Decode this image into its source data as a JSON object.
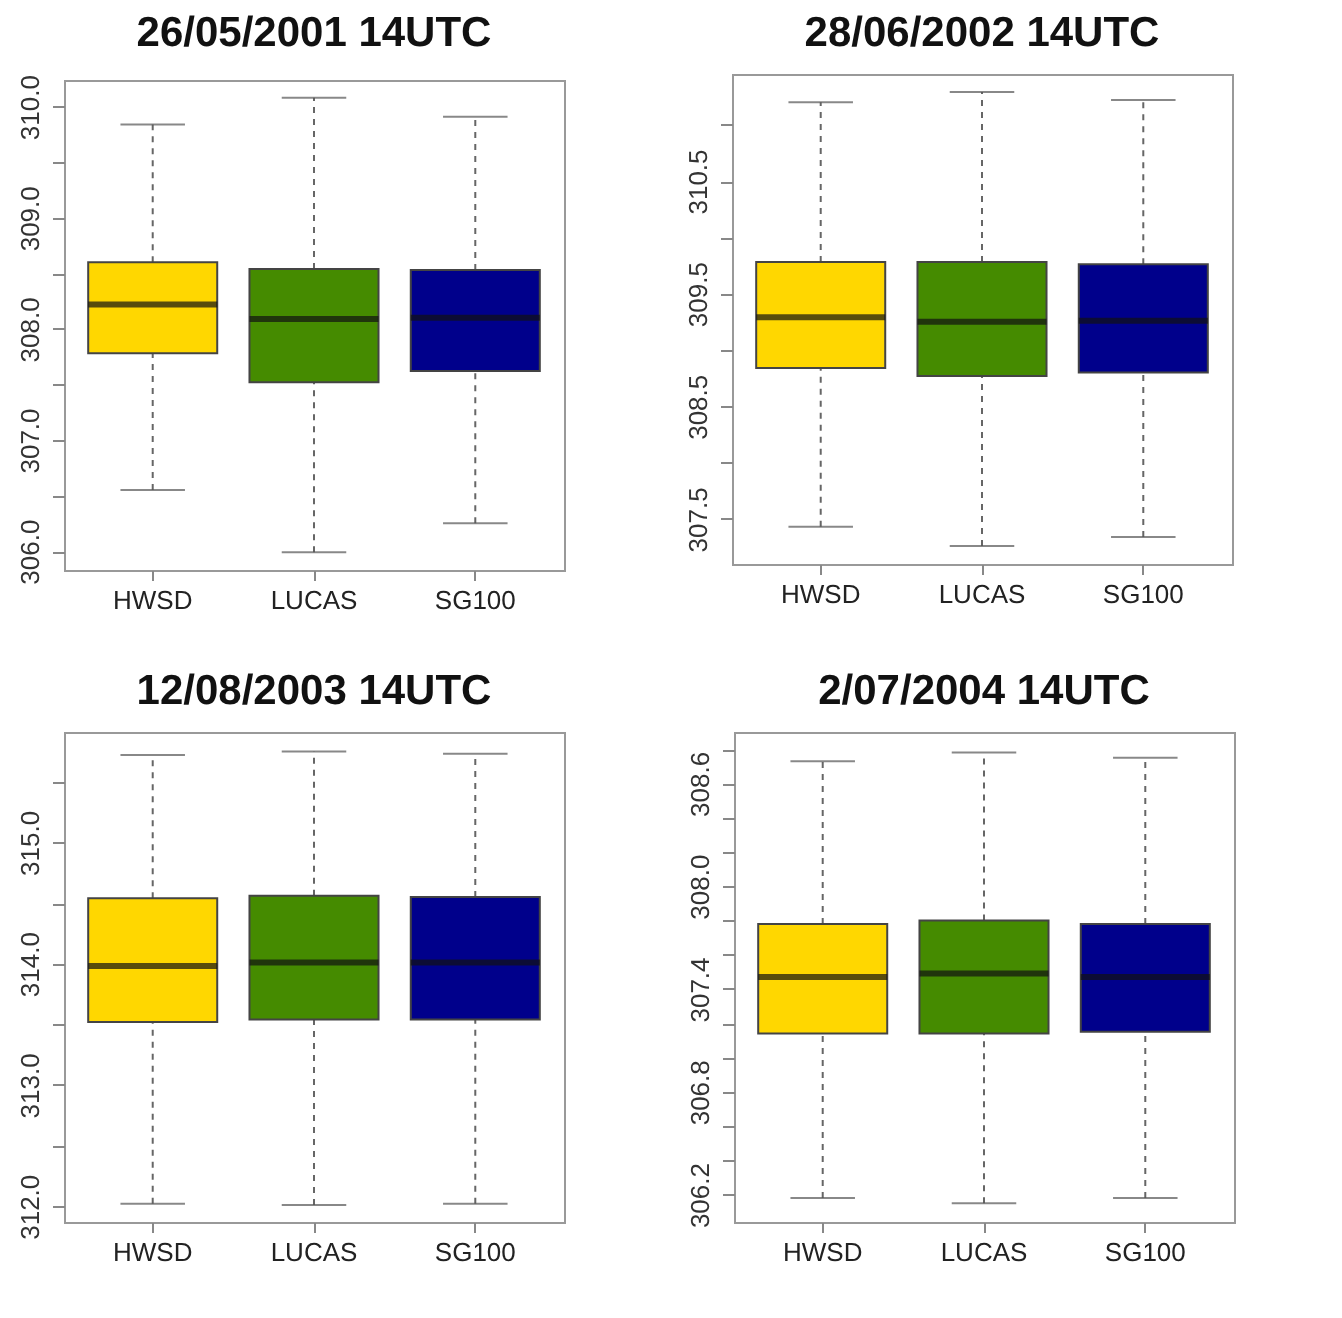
{
  "chart_data": [
    {
      "type": "box",
      "title": "26/05/2001 14UTC",
      "categories": [
        "HWSD",
        "LUCAS",
        "SG100"
      ],
      "colors": [
        "#ffd700",
        "#458b00",
        "#00008b"
      ],
      "boxes": [
        {
          "low": 306.55,
          "q1": 307.78,
          "median": 308.22,
          "q3": 308.6,
          "high": 309.84
        },
        {
          "low": 305.99,
          "q1": 307.52,
          "median": 308.09,
          "q3": 308.54,
          "high": 310.08
        },
        {
          "low": 306.25,
          "q1": 307.62,
          "median": 308.1,
          "q3": 308.53,
          "high": 309.91
        }
      ],
      "ylim": [
        305.83,
        310.24
      ],
      "yticks": [
        {
          "value": 306,
          "label": "306.0"
        },
        {
          "value": 306.5,
          "label": null
        },
        {
          "value": 307,
          "label": "307.0"
        },
        {
          "value": 307.5,
          "label": null
        },
        {
          "value": 308,
          "label": "308.0"
        },
        {
          "value": 308.5,
          "label": null
        },
        {
          "value": 309,
          "label": "309.0"
        },
        {
          "value": 309.5,
          "label": null
        },
        {
          "value": 310,
          "label": "310.0"
        }
      ]
    },
    {
      "type": "box",
      "title": "28/06/2002 14UTC",
      "categories": [
        "HWSD",
        "LUCAS",
        "SG100"
      ],
      "colors": [
        "#ffd700",
        "#458b00",
        "#00008b"
      ],
      "boxes": [
        {
          "low": 307.43,
          "q1": 308.84,
          "median": 309.29,
          "q3": 309.78,
          "high": 311.2
        },
        {
          "low": 307.26,
          "q1": 308.77,
          "median": 309.25,
          "q3": 309.78,
          "high": 311.29
        },
        {
          "low": 307.34,
          "q1": 308.8,
          "median": 309.26,
          "q3": 309.76,
          "high": 311.22
        }
      ],
      "ylim": [
        307.1,
        311.45
      ],
      "yticks": [
        307.5,
        {
          "value": 308,
          "label": null
        },
        308.5,
        {
          "value": 309,
          "label": null
        },
        309.5,
        {
          "value": 310,
          "label": null
        },
        310.5,
        {
          "value": 311,
          "label": null
        }
      ]
    },
    {
      "type": "box",
      "title": "12/08/2003 14UTC",
      "categories": [
        "HWSD",
        "LUCAS",
        "SG100"
      ],
      "colors": [
        "#ffd700",
        "#458b00",
        "#00008b"
      ],
      "boxes": [
        {
          "low": 312.02,
          "q1": 313.52,
          "median": 313.98,
          "q3": 314.54,
          "high": 315.72
        },
        {
          "low": 312.01,
          "q1": 313.54,
          "median": 314.01,
          "q3": 314.56,
          "high": 315.75
        },
        {
          "low": 312.02,
          "q1": 313.54,
          "median": 314.01,
          "q3": 314.55,
          "high": 315.73
        }
      ],
      "ylim": [
        311.87,
        315.91
      ],
      "yticks": [
        {
          "value": 312,
          "label": "312.0"
        },
        {
          "value": 312.5,
          "label": null
        },
        {
          "value": 313,
          "label": "313.0"
        },
        {
          "value": 313.5,
          "label": null
        },
        {
          "value": 314,
          "label": "314.0"
        },
        {
          "value": 314.5,
          "label": null
        },
        {
          "value": 315,
          "label": "315.0"
        },
        {
          "value": 315.5,
          "label": null
        }
      ]
    },
    {
      "type": "box",
      "title": "2/07/2004 14UTC",
      "categories": [
        "HWSD",
        "LUCAS",
        "SG100"
      ],
      "colors": [
        "#ffd700",
        "#458b00",
        "#00008b"
      ],
      "boxes": [
        {
          "low": 306.18,
          "q1": 307.14,
          "median": 307.47,
          "q3": 307.78,
          "high": 308.73
        },
        {
          "low": 306.15,
          "q1": 307.14,
          "median": 307.49,
          "q3": 307.8,
          "high": 308.78
        },
        {
          "low": 306.18,
          "q1": 307.15,
          "median": 307.47,
          "q3": 307.78,
          "high": 308.75
        }
      ],
      "ylim": [
        306.04,
        308.9
      ],
      "yticks": [
        306.2,
        {
          "value": 306.4,
          "label": null
        },
        {
          "value": 306.6,
          "label": null
        },
        306.8,
        {
          "value": 307,
          "label": null
        },
        {
          "value": 307.2,
          "label": null
        },
        307.4,
        {
          "value": 307.6,
          "label": null
        },
        {
          "value": 307.8,
          "label": null
        },
        {
          "value": 308,
          "label": "308.0"
        },
        {
          "value": 308.2,
          "label": null
        },
        {
          "value": 308.4,
          "label": null
        },
        308.6,
        {
          "value": 308.8,
          "label": null
        }
      ]
    }
  ]
}
